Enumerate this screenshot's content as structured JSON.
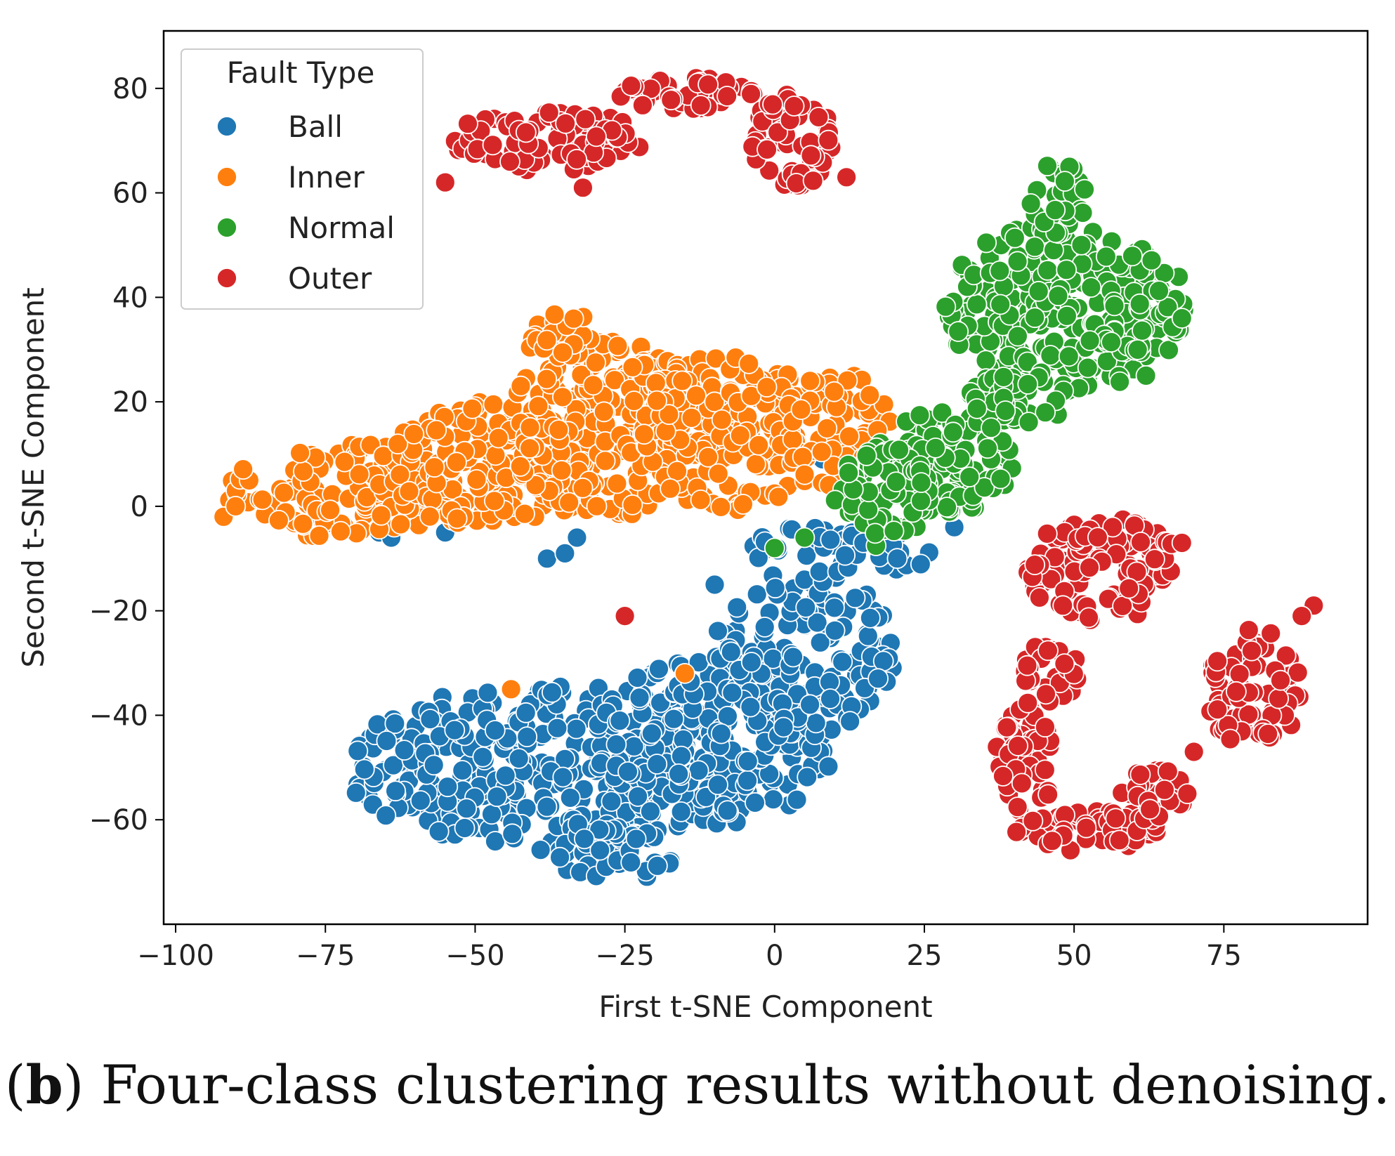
{
  "chart_data": {
    "type": "scatter",
    "title": "",
    "xlabel": "First t-SNE Component",
    "ylabel": "Second t-SNE Component",
    "xlim": [
      -102,
      99
    ],
    "ylim": [
      -80,
      91
    ],
    "xticks": [
      -100,
      -75,
      -50,
      -25,
      0,
      25,
      50,
      75
    ],
    "yticks": [
      -60,
      -40,
      -20,
      0,
      20,
      40,
      60,
      80
    ],
    "xtick_labels": [
      "−100",
      "−75",
      "−50",
      "−25",
      "0",
      "25",
      "50",
      "75"
    ],
    "ytick_labels": [
      "−60",
      "−40",
      "−20",
      "0",
      "20",
      "40",
      "60",
      "80"
    ],
    "legend": {
      "title": "Fault Type",
      "position": "top-left",
      "entries": [
        "Ball",
        "Inner",
        "Normal",
        "Outer"
      ]
    },
    "series": [
      {
        "name": "Ball",
        "color": "#1f77b4",
        "regions": [
          {
            "cx": -38,
            "cy": -50,
            "rx": 34,
            "ry": 16,
            "n": 330
          },
          {
            "cx": -10,
            "cy": -45,
            "rx": 20,
            "ry": 16,
            "n": 190
          },
          {
            "cx": 5,
            "cy": -28,
            "rx": 15,
            "ry": 16,
            "n": 150
          },
          {
            "cx": 12,
            "cy": -8,
            "rx": 16,
            "ry": 5,
            "n": 50
          },
          {
            "cx": -28,
            "cy": -66,
            "rx": 12,
            "ry": 6,
            "n": 50
          }
        ],
        "points": [
          {
            "x": -66,
            "y": -5
          },
          {
            "x": -64,
            "y": -6
          },
          {
            "x": -55,
            "y": -5
          },
          {
            "x": -38,
            "y": -10
          },
          {
            "x": -33,
            "y": -6
          },
          {
            "x": -35,
            "y": -9
          },
          {
            "x": 8,
            "y": 9
          },
          {
            "x": 30,
            "y": -4
          },
          {
            "x": -10,
            "y": -15
          }
        ]
      },
      {
        "name": "Inner",
        "color": "#ff7f0e",
        "regions": [
          {
            "cx": -72,
            "cy": 3,
            "rx": 20,
            "ry": 9,
            "n": 130
          },
          {
            "cx": -47,
            "cy": 8,
            "rx": 17,
            "ry": 13,
            "n": 180
          },
          {
            "cx": -28,
            "cy": 15,
            "rx": 17,
            "ry": 17,
            "n": 210
          },
          {
            "cx": -8,
            "cy": 14,
            "rx": 17,
            "ry": 15,
            "n": 170
          },
          {
            "cx": 10,
            "cy": 15,
            "rx": 10,
            "ry": 11,
            "n": 70
          },
          {
            "cx": -36,
            "cy": 33,
            "rx": 6,
            "ry": 5,
            "n": 30
          }
        ],
        "points": [
          {
            "x": -92,
            "y": -2
          },
          {
            "x": -90,
            "y": 0
          },
          {
            "x": 14,
            "y": 5
          },
          {
            "x": 25,
            "y": 16
          },
          {
            "x": 22,
            "y": 16
          },
          {
            "x": -15,
            "y": -32
          },
          {
            "x": -44,
            "y": -35
          }
        ]
      },
      {
        "name": "Normal",
        "color": "#2ca02c",
        "regions": [
          {
            "cx": 48,
            "cy": 38,
            "rx": 21,
            "ry": 16,
            "n": 280
          },
          {
            "cx": 47,
            "cy": 59,
            "rx": 5,
            "ry": 7,
            "n": 30
          },
          {
            "cx": 28,
            "cy": 8,
            "rx": 12,
            "ry": 10,
            "n": 120
          },
          {
            "cx": 18,
            "cy": 2,
            "rx": 8,
            "ry": 10,
            "n": 60
          },
          {
            "cx": 40,
            "cy": 20,
            "rx": 8,
            "ry": 6,
            "n": 40
          }
        ],
        "points": [
          {
            "x": 68,
            "y": 36
          },
          {
            "x": 62,
            "y": 25
          },
          {
            "x": 5,
            "y": -6
          },
          {
            "x": 0,
            "y": -8
          }
        ]
      },
      {
        "name": "Outer",
        "color": "#d62728",
        "regions": [
          {
            "cx": -38,
            "cy": 70,
            "rx": 16,
            "ry": 6,
            "n": 90
          },
          {
            "cx": -15,
            "cy": 79,
            "rx": 12,
            "ry": 3,
            "n": 50
          },
          {
            "cx": 3,
            "cy": 70,
            "rx": 7,
            "ry": 9,
            "n": 60
          },
          {
            "cx": 55,
            "cy": -12,
            "rx": 13,
            "ry": 10,
            "n": 110
          },
          {
            "cx": 46,
            "cy": -32,
            "rx": 5,
            "ry": 6,
            "n": 30
          },
          {
            "cx": 42,
            "cy": -48,
            "rx": 5,
            "ry": 11,
            "n": 50
          },
          {
            "cx": 52,
            "cy": -62,
            "rx": 12,
            "ry": 4,
            "n": 50
          },
          {
            "cx": 63,
            "cy": -55,
            "rx": 6,
            "ry": 5,
            "n": 30
          },
          {
            "cx": 80,
            "cy": -35,
            "rx": 8,
            "ry": 12,
            "n": 70
          }
        ],
        "points": [
          {
            "x": -25,
            "y": -21
          },
          {
            "x": -55,
            "y": 62
          },
          {
            "x": -32,
            "y": 61
          },
          {
            "x": 90,
            "y": -19
          },
          {
            "x": 88,
            "y": -21
          },
          {
            "x": 70,
            "y": -47
          },
          {
            "x": 12,
            "y": 63
          },
          {
            "x": 68,
            "y": -7
          }
        ]
      }
    ]
  },
  "caption": {
    "prefix": "(",
    "letter": "b",
    "text": ") Four-class clustering results without denoising."
  }
}
